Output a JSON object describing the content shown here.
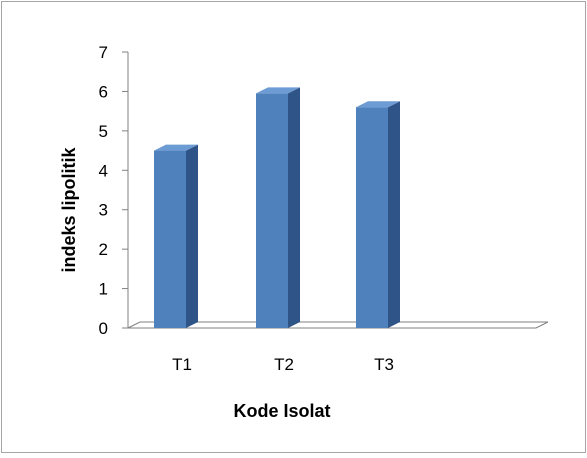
{
  "chart_data": {
    "type": "bar",
    "style": "3d-column",
    "categories": [
      "T1",
      "T2",
      "T3"
    ],
    "values": [
      4.5,
      5.95,
      5.6
    ],
    "xlabel": "Kode Isolat",
    "ylabel": "indeks lipolitik",
    "ylim": [
      0,
      7
    ],
    "yticks": [
      "0",
      "1",
      "2",
      "3",
      "4",
      "5",
      "6",
      "7"
    ],
    "grid": false,
    "legend": "none",
    "colors": {
      "bar_front": "#4f81bd",
      "bar_side": "#2f5488",
      "bar_top": "#6d9bd3",
      "axis": "#808080",
      "border": "#a6a6a6"
    }
  }
}
